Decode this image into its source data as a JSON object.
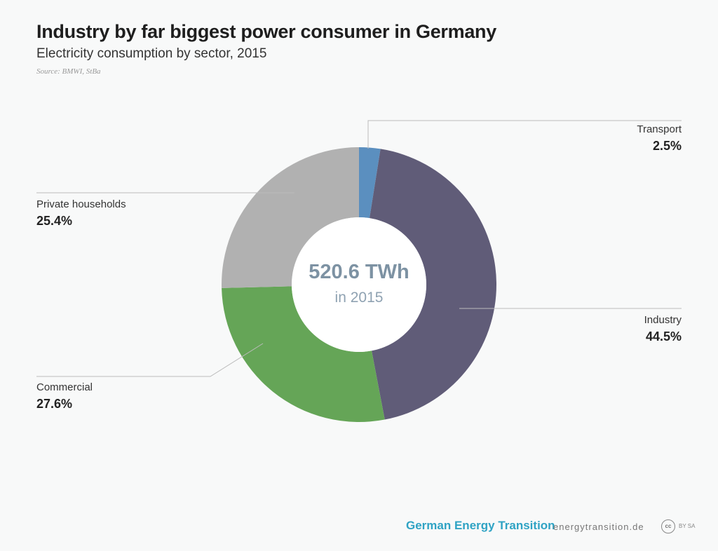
{
  "header": {
    "title": "Industry by far biggest power consumer in Germany",
    "subtitle": "Electricity consumption by sector, 2015",
    "source": "Source: BMWI, StBa"
  },
  "chart_data": {
    "type": "pie",
    "variant": "donut",
    "title": "Industry by far biggest power consumer in Germany",
    "subtitle": "Electricity consumption by sector, 2015",
    "center_label": {
      "value": "520.6 TWh",
      "sub": "in 2015"
    },
    "unit": "%",
    "slices": [
      {
        "label": "Transport",
        "value": 2.5,
        "display": "2.5%",
        "color": "#5b8fbf"
      },
      {
        "label": "Industry",
        "value": 44.5,
        "display": "44.5%",
        "color": "#605c78"
      },
      {
        "label": "Commercial",
        "value": 27.6,
        "display": "27.6%",
        "color": "#65a557"
      },
      {
        "label": "Private households",
        "value": 25.4,
        "display": "25.4%",
        "color": "#b1b1b1"
      }
    ]
  },
  "footer": {
    "brand": "German Energy Transition",
    "url": "energytransition.de",
    "cc_icon": "creative-commons-icon",
    "cc": "cc",
    "license": "BY SA"
  }
}
